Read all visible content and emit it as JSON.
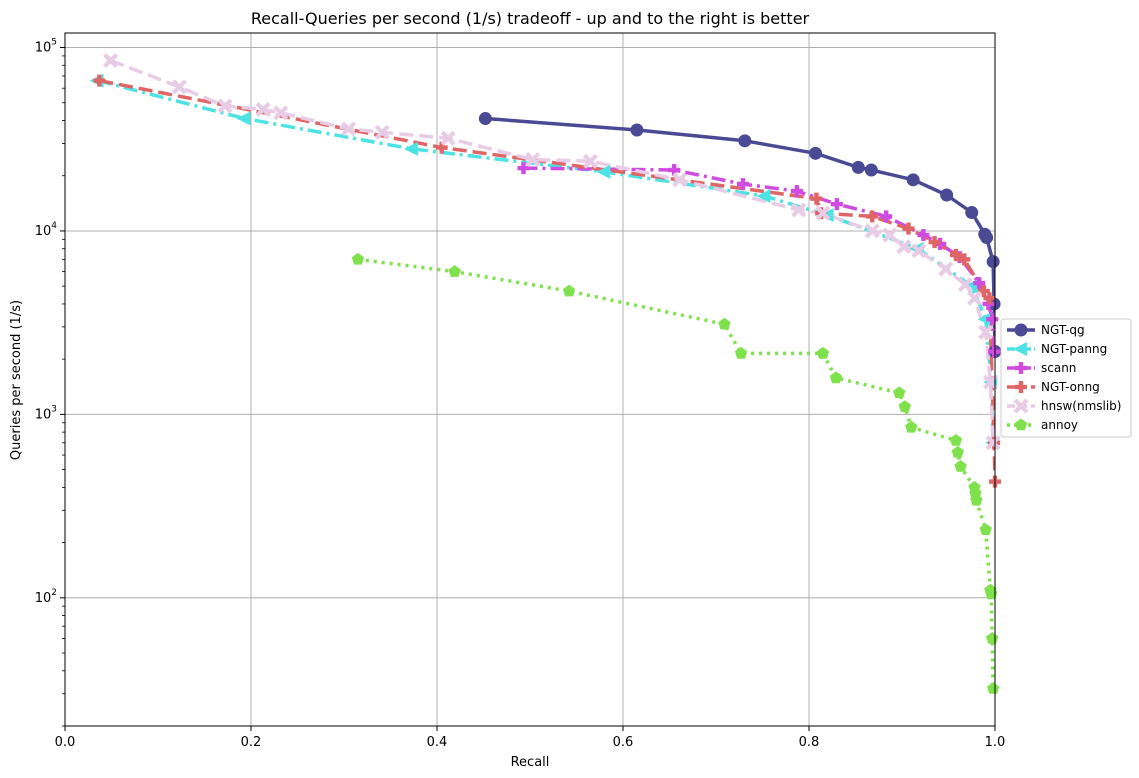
{
  "chart_data": {
    "type": "line",
    "title": "Recall-Queries per second (1/s) tradeoff - up and to the right is better",
    "xlabel": "Recall",
    "ylabel": "Queries per second (1/s)",
    "xlim": [
      0.0,
      1.0
    ],
    "ylim": [
      20,
      120000
    ],
    "yscale": "log",
    "grid": true,
    "legend_position": "right",
    "x_ticks": [
      "0.0",
      "0.2",
      "0.4",
      "0.6",
      "0.8",
      "1.0"
    ],
    "y_ticks": [
      {
        "base": "10",
        "exp": "2"
      },
      {
        "base": "10",
        "exp": "3"
      },
      {
        "base": "10",
        "exp": "4"
      },
      {
        "base": "10",
        "exp": "5"
      }
    ],
    "series": [
      {
        "name": "NGT-qg",
        "color": "#4a4a94",
        "dash": "solid",
        "marker": "circle",
        "x": [
          0.452,
          0.615,
          0.731,
          0.807,
          0.853,
          0.867,
          0.912,
          0.948,
          0.975,
          0.989,
          0.991,
          0.998,
          0.999,
          1.0
        ],
        "y": [
          41000,
          35500,
          31000,
          26500,
          22200,
          21500,
          19000,
          15700,
          12600,
          9600,
          9200,
          6800,
          4000,
          2200
        ]
      },
      {
        "name": "NGT-panng",
        "color": "#4de2e4",
        "dash": "dashdot",
        "marker": "triangle-left",
        "x": [
          0.035,
          0.193,
          0.373,
          0.58,
          0.752,
          0.82,
          0.917,
          0.975,
          0.99,
          0.996,
          0.998
        ],
        "y": [
          66000,
          41000,
          28000,
          21000,
          15500,
          12200,
          8000,
          5000,
          3300,
          1500,
          700
        ]
      },
      {
        "name": "scann",
        "color": "#d04be2",
        "dash": "dashdot",
        "marker": "plus",
        "x": [
          0.493,
          0.655,
          0.729,
          0.787,
          0.83,
          0.883,
          0.923,
          0.941,
          0.962,
          0.983,
          0.993,
          0.997,
          0.999
        ],
        "y": [
          22000,
          21500,
          18000,
          16500,
          14000,
          12000,
          9500,
          8500,
          7200,
          5200,
          4000,
          3300,
          2200
        ]
      },
      {
        "name": "NGT-onng",
        "color": "#e06666",
        "dash": "dashed",
        "marker": "plus",
        "x": [
          0.037,
          0.405,
          0.808,
          0.813,
          0.868,
          0.907,
          0.935,
          0.958,
          0.967,
          0.988,
          0.994,
          0.999,
          1.0
        ],
        "y": [
          66000,
          28500,
          15000,
          12500,
          12000,
          10300,
          8700,
          7400,
          7000,
          4700,
          4300,
          700,
          430
        ]
      },
      {
        "name": "hnsw(nmslib)",
        "color": "#e8cce6",
        "dash": "dashed",
        "marker": "x",
        "x": [
          0.049,
          0.123,
          0.172,
          0.213,
          0.232,
          0.305,
          0.341,
          0.412,
          0.503,
          0.565,
          0.661,
          0.789,
          0.815,
          0.868,
          0.887,
          0.902,
          0.918,
          0.947,
          0.968,
          0.978,
          0.99,
          0.995,
          0.998
        ],
        "y": [
          85000,
          61000,
          48000,
          46000,
          44000,
          36000,
          34500,
          32000,
          24500,
          24000,
          19000,
          13000,
          12500,
          10000,
          9500,
          8200,
          7800,
          6200,
          5100,
          4300,
          2800,
          1500,
          700
        ]
      },
      {
        "name": "annoy",
        "color": "#7fe24c",
        "dash": "dotted",
        "marker": "pentagon",
        "x": [
          0.315,
          0.419,
          0.542,
          0.709,
          0.727,
          0.815,
          0.829,
          0.897,
          0.903,
          0.91,
          0.958,
          0.96,
          0.963,
          0.978,
          0.979,
          0.98,
          0.99,
          0.995,
          0.996,
          0.997,
          0.998
        ],
        "y": [
          7000,
          6000,
          4700,
          3100,
          2150,
          2150,
          1580,
          1310,
          1100,
          850,
          720,
          620,
          520,
          400,
          370,
          340,
          235,
          110,
          105,
          60,
          32
        ]
      }
    ]
  }
}
